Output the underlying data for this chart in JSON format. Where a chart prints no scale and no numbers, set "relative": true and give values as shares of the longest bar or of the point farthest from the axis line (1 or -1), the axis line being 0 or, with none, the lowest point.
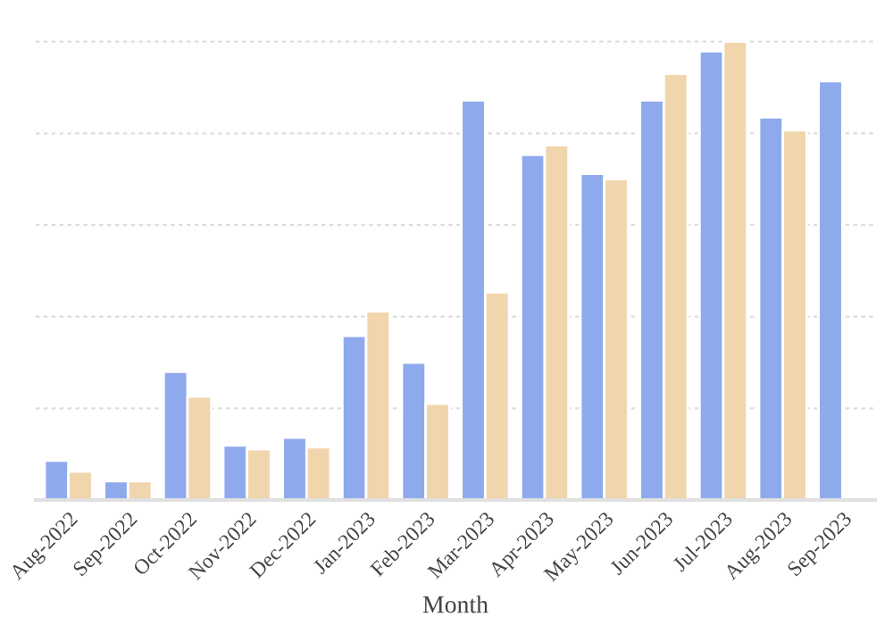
{
  "chart_data": {
    "type": "bar",
    "relative": true,
    "xlabel": "Month",
    "categories": [
      "Aug-2022",
      "Sep-2022",
      "Oct-2022",
      "Nov-2022",
      "Dec-2022",
      "Jan-2023",
      "Feb-2023",
      "Mar-2023",
      "Apr-2023",
      "May-2023",
      "Jun-2023",
      "Jul-2023",
      "Aug-2023",
      "Sep-2023"
    ],
    "series": [
      {
        "color": "#8eaaec",
        "values": [
          0.086,
          0.041,
          0.28,
          0.119,
          0.136,
          0.358,
          0.3,
          0.872,
          0.753,
          0.712,
          0.872,
          0.979,
          0.835,
          0.914
        ]
      },
      {
        "color": "#f0d5ad",
        "values": [
          0.062,
          0.041,
          0.226,
          0.111,
          0.115,
          0.412,
          0.21,
          0.453,
          0.774,
          0.7,
          0.93,
          1,
          0.807,
          null
        ]
      }
    ],
    "grid": "y",
    "legend": false
  }
}
